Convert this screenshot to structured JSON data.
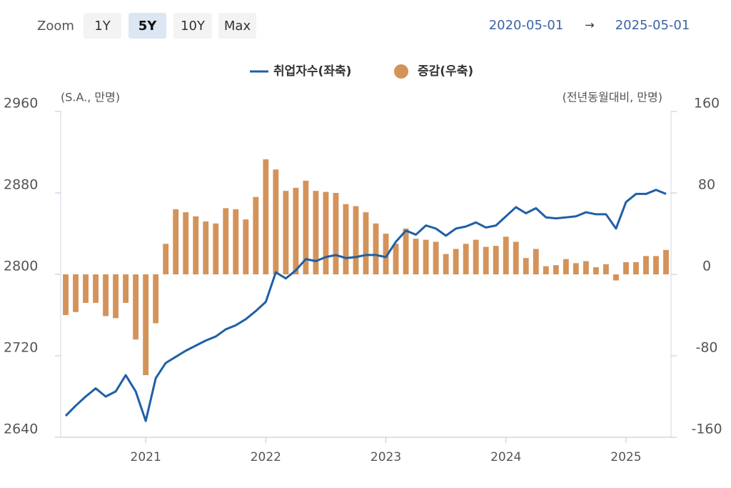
{
  "zoom": {
    "label": "Zoom",
    "options": [
      "1Y",
      "5Y",
      "10Y",
      "Max"
    ],
    "selected": "5Y"
  },
  "range": {
    "from": "2020-05-01",
    "arrow": "→",
    "to": "2025-05-01"
  },
  "chart_data": {
    "type": "bar-line",
    "y_label": "(S.A., 만명)",
    "y2_label": "(전년동월대비, 만명)",
    "categories": [
      null,
      null,
      null,
      null,
      null,
      null,
      null,
      null,
      "2021",
      null,
      null,
      null,
      null,
      null,
      null,
      null,
      null,
      null,
      null,
      null,
      "2022",
      null,
      null,
      null,
      null,
      null,
      null,
      null,
      null,
      null,
      null,
      null,
      "2023",
      null,
      null,
      null,
      null,
      null,
      null,
      null,
      null,
      null,
      null,
      null,
      "2024",
      null,
      null,
      null,
      null,
      null,
      null,
      null,
      null,
      null,
      null,
      null,
      "2025",
      null,
      null,
      null,
      null
    ],
    "series": [
      {
        "name": "취업자수(좌축)",
        "type": "line",
        "color": "#1f5fa6",
        "axis": "y",
        "values": [
          2661,
          2671,
          2680,
          2688,
          2680,
          2685,
          2701,
          2685,
          2656,
          2698,
          2713,
          2719,
          2725,
          2730,
          2735,
          2739,
          2746,
          2750,
          2756,
          2764,
          2773,
          2802,
          2796,
          2804,
          2815,
          2813,
          2817,
          2819,
          2816,
          2817,
          2819,
          2819,
          2817,
          2832,
          2843,
          2839,
          2848,
          2845,
          2838,
          2845,
          2847,
          2851,
          2846,
          2848,
          2857,
          2866,
          2860,
          2865,
          2856,
          2855,
          2856,
          2857,
          2861,
          2859,
          2859,
          2845,
          2871,
          2879,
          2879,
          2883,
          2879
        ]
      },
      {
        "name": "증감(우축)",
        "type": "bar",
        "color": "#d4935a",
        "axis": "y2",
        "values": [
          -40,
          -37,
          -28,
          -28,
          -41,
          -43,
          -28,
          -64,
          -99,
          -48,
          30,
          64,
          61,
          57,
          52,
          50,
          65,
          64,
          54,
          76,
          113,
          103,
          82,
          85,
          92,
          82,
          81,
          80,
          69,
          67,
          61,
          50,
          40,
          30,
          45,
          35,
          34,
          32,
          20,
          25,
          30,
          34,
          27,
          28,
          37,
          32,
          16,
          25,
          8,
          9,
          15,
          11,
          13,
          7,
          10,
          -6,
          12,
          12,
          18,
          18,
          24
        ]
      }
    ],
    "ylim": [
      2640,
      2960
    ],
    "yticks": [
      2640,
      2720,
      2800,
      2880,
      2960
    ],
    "y2lim": [
      -160,
      160
    ],
    "y2ticks": [
      -160,
      -80,
      0,
      80,
      160
    ]
  }
}
